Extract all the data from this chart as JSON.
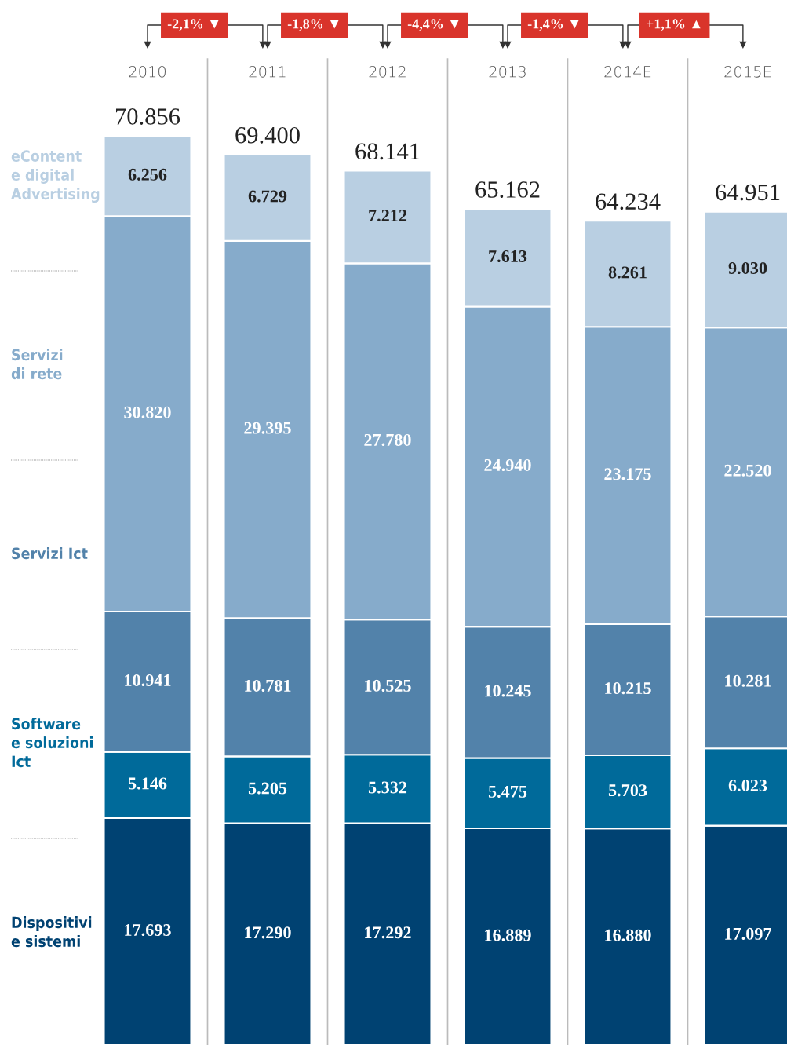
{
  "chart_data": {
    "type": "bar",
    "stacked": true,
    "categories": [
      "2010",
      "2011",
      "2012",
      "2013",
      "2014E",
      "2015E"
    ],
    "series": [
      {
        "name": "Dispositivi\ne sistemi",
        "color": "#004272",
        "values": [
          17693,
          17290,
          17292,
          16889,
          16880,
          17097
        ],
        "value_labels": [
          "17.693",
          "17.290",
          "17.292",
          "16.889",
          "16.880",
          "17.097"
        ]
      },
      {
        "name": "Software\ne soluzioni\nIct",
        "color": "#006a9a",
        "values": [
          5146,
          5205,
          5332,
          5475,
          5703,
          6023
        ],
        "value_labels": [
          "5.146",
          "5.205",
          "5.332",
          "5.475",
          "5.703",
          "6.023"
        ]
      },
      {
        "name": "Servizi Ict",
        "color": "#5282aa",
        "values": [
          10941,
          10781,
          10525,
          10245,
          10215,
          10281
        ],
        "value_labels": [
          "10.941",
          "10.781",
          "10.525",
          "10.245",
          "10.215",
          "10.281"
        ]
      },
      {
        "name": "Servizi\ndi rete",
        "color": "#86abcb",
        "values": [
          30820,
          29395,
          27780,
          24940,
          23175,
          22520
        ],
        "value_labels": [
          "30.820",
          "29.395",
          "27.780",
          "24.940",
          "23.175",
          "22.520"
        ]
      },
      {
        "name": "eContent\ne digital\nAdvertising",
        "color": "#b9cfe2",
        "values": [
          6256,
          6729,
          7212,
          7613,
          8261,
          9030
        ],
        "value_labels": [
          "6.256",
          "6.729",
          "7.212",
          "7.613",
          "8.261",
          "9.030"
        ]
      }
    ],
    "totals": [
      "70.856",
      "69.400",
      "68.141",
      "65.162",
      "64.234",
      "64.951"
    ],
    "annotations": [
      "-2,1% ▼",
      "-1,8% ▼",
      "-4,4% ▼",
      "-1,4% ▼",
      "+1,1% ▲"
    ],
    "ylim": [
      0,
      81450
    ],
    "legend": false
  }
}
